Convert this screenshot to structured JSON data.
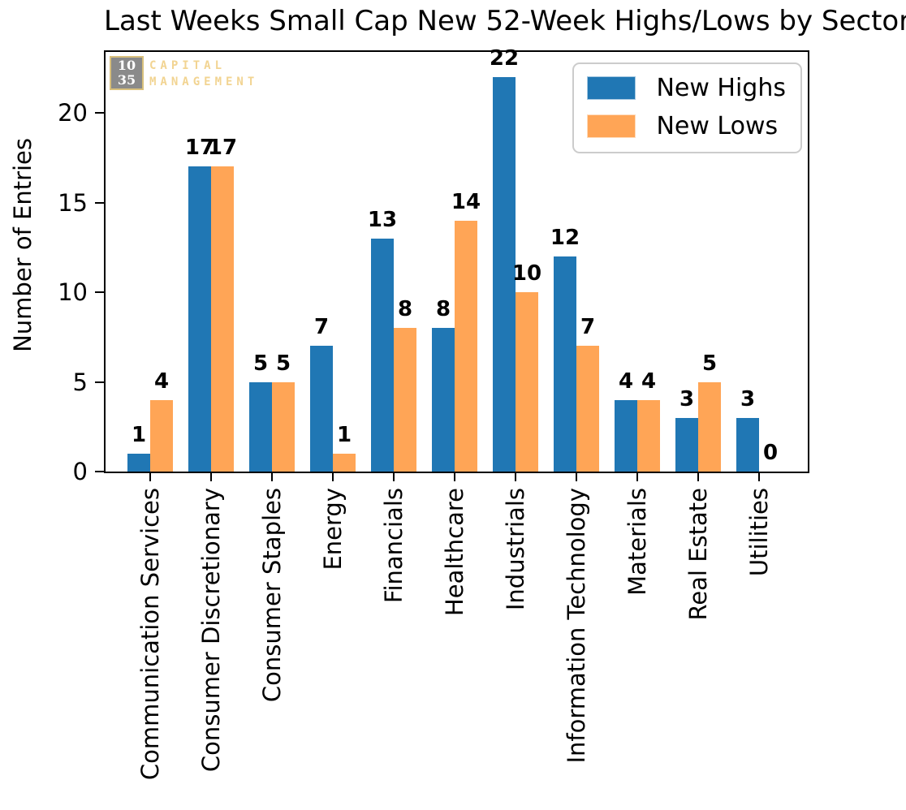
{
  "logo": {
    "number_top": "10",
    "number_bottom": "35",
    "text_line1": "CAPITAL",
    "text_line2": "MANAGEMENT"
  },
  "colors": {
    "bar_blue": "#2077B4",
    "bar_orange": "#FFA556",
    "axis": "#000000",
    "legend_border": "#CCCCCC",
    "logo_background": "#8A8A8A",
    "logo_border": "#D8C07C",
    "logo_text": "#F2D492",
    "value_label": "#000000"
  },
  "chart_data": {
    "type": "bar",
    "title": "Last Weeks Small Cap New 52-Week Highs/Lows by Sector",
    "xlabel": "",
    "ylabel": "Number of Entries",
    "categories": [
      "Communication Services",
      "Consumer Discretionary",
      "Consumer Staples",
      "Energy",
      "Financials",
      "Healthcare",
      "Industrials",
      "Information Technology",
      "Materials",
      "Real Estate",
      "Utilities"
    ],
    "series": [
      {
        "name": "New Highs",
        "color": "#2077B4",
        "values": [
          1,
          17,
          5,
          7,
          13,
          8,
          22,
          12,
          4,
          3,
          3
        ]
      },
      {
        "name": "New Lows",
        "color": "#FFA556",
        "values": [
          4,
          17,
          5,
          1,
          8,
          14,
          10,
          7,
          4,
          5,
          0
        ]
      }
    ],
    "yticks": [
      0,
      5,
      10,
      15,
      20
    ],
    "ylim": [
      0,
      23.4
    ],
    "grid": false,
    "legend_position": "upper right",
    "bar_value_labels": true
  }
}
